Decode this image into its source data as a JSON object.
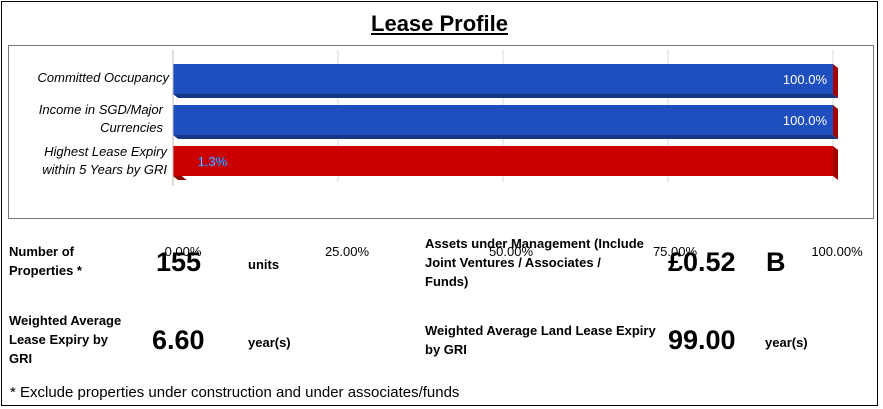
{
  "title": "Lease Profile",
  "chart_data": {
    "type": "bar",
    "orientation": "horizontal",
    "categories": [
      "Committed Occupancy",
      "Income in SGD/Major Currencies",
      "Highest Lease Expiry within 5 Years by GRI"
    ],
    "values": [
      100.0,
      100.0,
      1.3
    ],
    "data_labels": [
      "100.0%",
      "100.0%",
      "1.3%"
    ],
    "colors": [
      "#1f4fbf",
      "#1f4fbf",
      "#cc0000"
    ],
    "background_bar_color": "#cc0000",
    "x_ticks": [
      "0.00%",
      "25.00%",
      "50.00%",
      "75.00%",
      "100.00%"
    ],
    "xlim": [
      0,
      100
    ],
    "grid": true
  },
  "metrics": {
    "properties": {
      "label": "Number of Properties *",
      "value": "155",
      "unit": "units"
    },
    "wale": {
      "label": "Weighted Average Lease Expiry by GRI",
      "value": "6.60",
      "unit": "year(s)"
    },
    "aum": {
      "label": "Assets under Management (Include Joint Ventures / Associates / Funds)",
      "value": "£0.52",
      "unit": "B"
    },
    "land_lease": {
      "label": "Weighted Average Land Lease Expiry by GRI",
      "value": "99.00",
      "unit": "year(s)"
    }
  },
  "footnote": "* Exclude properties under construction and under associates/funds"
}
